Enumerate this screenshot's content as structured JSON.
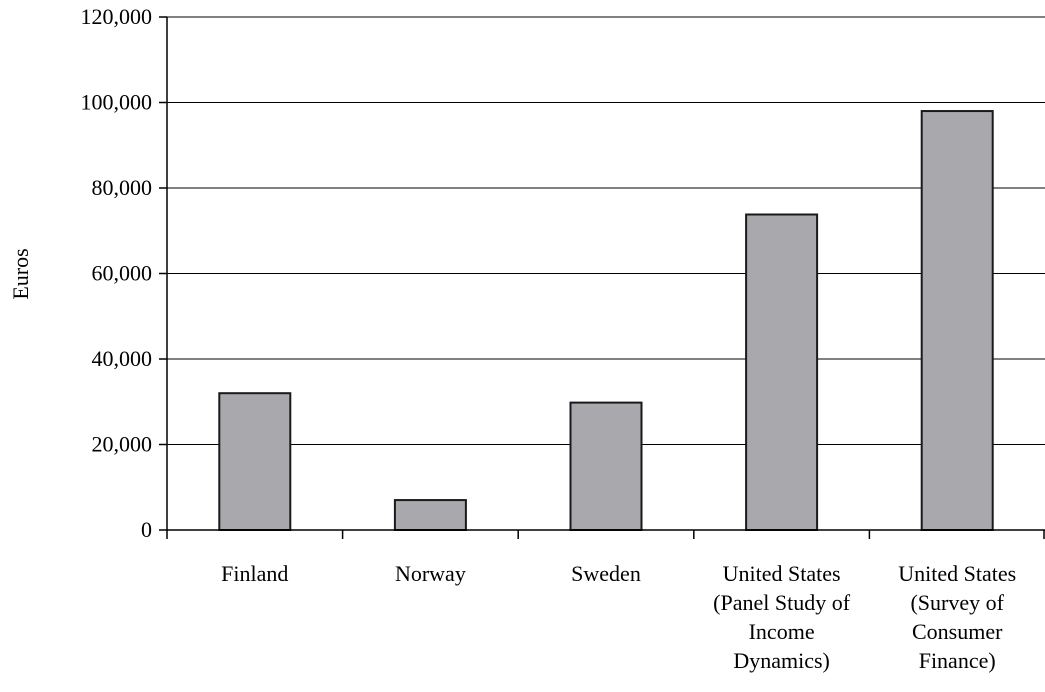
{
  "chart_data": {
    "type": "bar",
    "ylabel": "Euros",
    "xlabel": "",
    "ylim": [
      0,
      120000
    ],
    "yticks": [
      0,
      20000,
      40000,
      60000,
      80000,
      100000,
      120000
    ],
    "ytick_labels": [
      "0",
      "20,000",
      "40,000",
      "60,000",
      "80,000",
      "100,000",
      "120,000"
    ],
    "grid": true,
    "legend": "none",
    "categories": [
      [
        "Finland"
      ],
      [
        "Norway"
      ],
      [
        "Sweden"
      ],
      [
        "United States",
        "(Panel Study of",
        "Income",
        "Dynamics)"
      ],
      [
        "United States",
        "(Survey of",
        "Consumer",
        "Finance)"
      ]
    ],
    "values": [
      32000,
      7000,
      29800,
      73800,
      98000
    ],
    "colors": {
      "bar_fill": "#a8a8ad",
      "bar_stroke": "#1a1a1a",
      "grid": "#000000",
      "axis": "#000000"
    }
  }
}
